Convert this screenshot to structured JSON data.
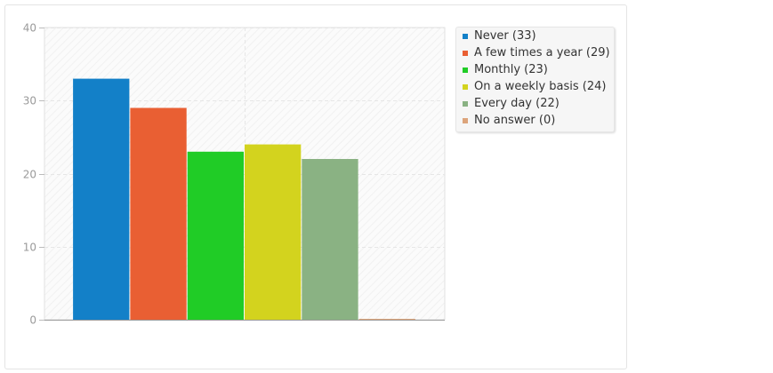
{
  "chart_data": {
    "type": "bar",
    "title": "",
    "xlabel": "",
    "ylabel": "",
    "ylim": [
      0,
      40
    ],
    "yticks": [
      "0",
      "10",
      "20",
      "30",
      "40"
    ],
    "grid": true,
    "legend_position": "right",
    "series": [
      {
        "name": "Never (33)",
        "value": 33,
        "color": "#1380c8"
      },
      {
        "name": "A few times a year (29)",
        "value": 29,
        "color": "#e95f33"
      },
      {
        "name": "Monthly (23)",
        "value": 23,
        "color": "#20cc26"
      },
      {
        "name": "On a weekly basis (24)",
        "value": 24,
        "color": "#d3d31e"
      },
      {
        "name": "Every day (22)",
        "value": 22,
        "color": "#8ab283"
      },
      {
        "name": "No answer (0)",
        "value": 0,
        "color": "#dca47b"
      }
    ]
  }
}
